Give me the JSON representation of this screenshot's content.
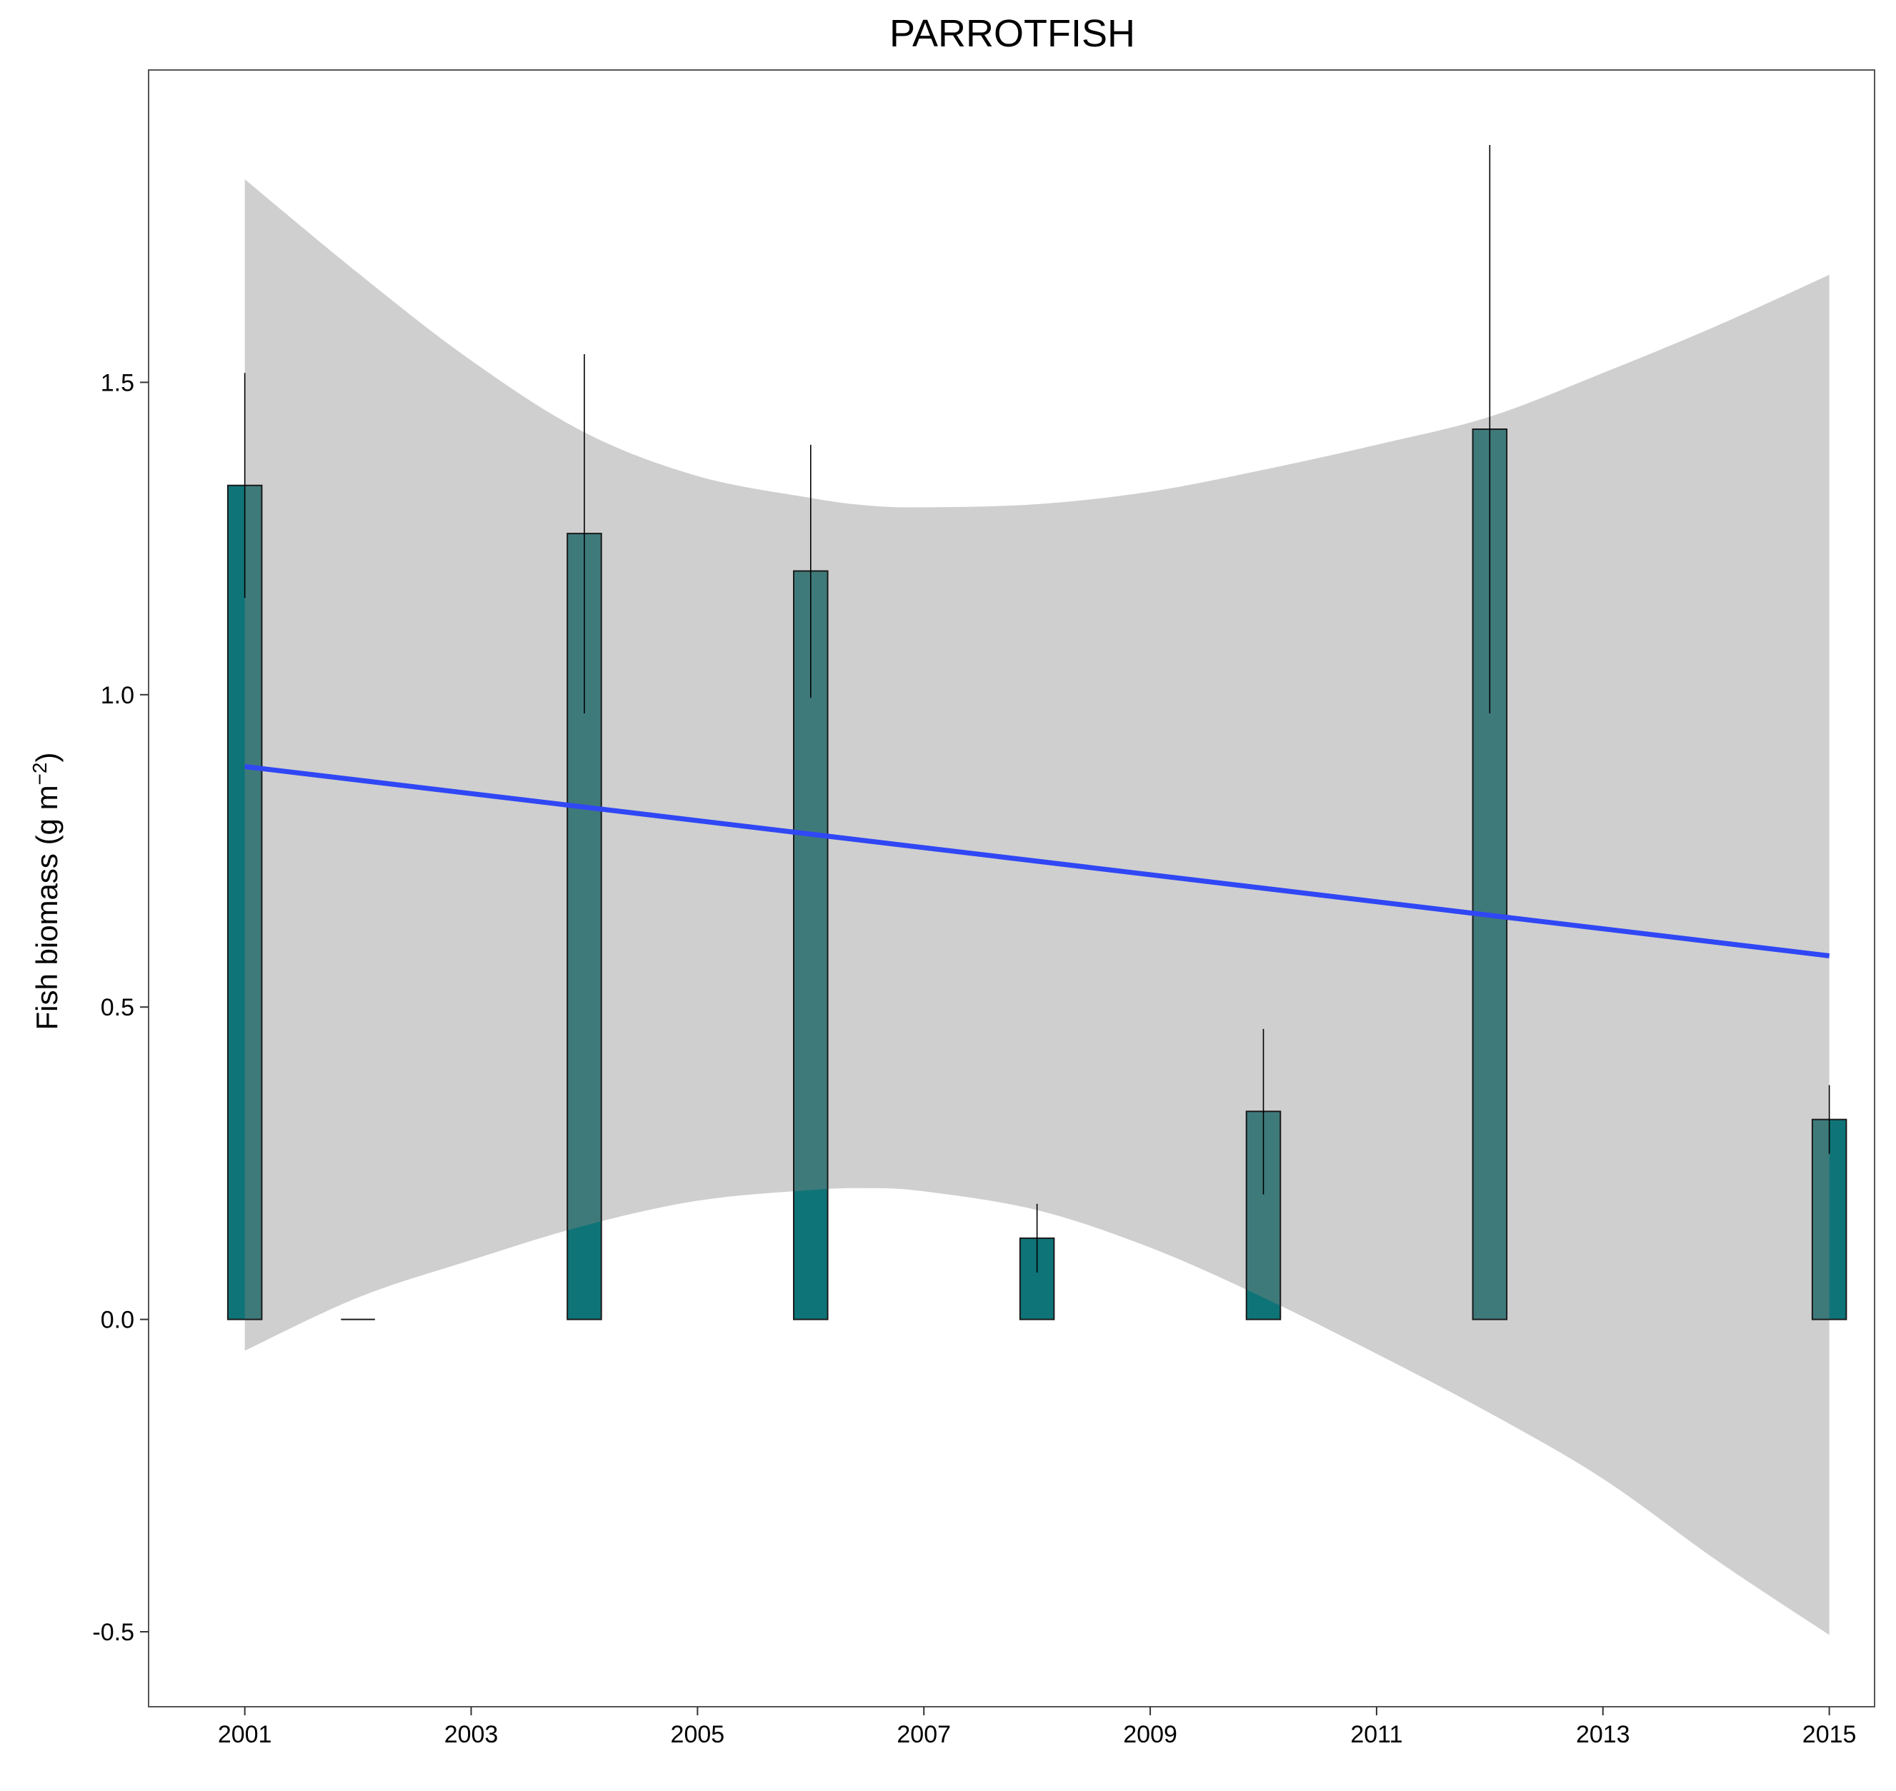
{
  "chart_data": {
    "type": "bar",
    "title": "PARROTFISH",
    "xlabel": "",
    "ylabel": "Fish biomass (g m",
    "ylabel_superscript": "−2",
    "ylabel_suffix": ")",
    "xlim": [
      2000.15,
      2015.4
    ],
    "ylim": [
      -0.62,
      2.0
    ],
    "x_ticks": [
      {
        "value": 2001,
        "label": "2001"
      },
      {
        "value": 2003,
        "label": "2003"
      },
      {
        "value": 2005,
        "label": "2005"
      },
      {
        "value": 2007,
        "label": "2007"
      },
      {
        "value": 2009,
        "label": "2009"
      },
      {
        "value": 2011,
        "label": "2011"
      },
      {
        "value": 2013,
        "label": "2013"
      },
      {
        "value": 2015,
        "label": "2015"
      }
    ],
    "y_ticks": [
      {
        "value": -0.5,
        "label": "-0.5"
      },
      {
        "value": 0.0,
        "label": "0.0"
      },
      {
        "value": 0.5,
        "label": "0.5"
      },
      {
        "value": 1.0,
        "label": "1.0"
      },
      {
        "value": 1.5,
        "label": "1.5"
      }
    ],
    "bar_half_width_years": 0.15,
    "bars": [
      {
        "year": 2001,
        "value": 1.335,
        "err_low": 1.155,
        "err_high": 1.515
      },
      {
        "year": 2002,
        "value": 0.0,
        "err_low": 0.0,
        "err_high": 0.0
      },
      {
        "year": 2004,
        "value": 1.258,
        "err_low": 0.97,
        "err_high": 1.545
      },
      {
        "year": 2006,
        "value": 1.198,
        "err_low": 0.995,
        "err_high": 1.4
      },
      {
        "year": 2008,
        "value": 0.13,
        "err_low": 0.075,
        "err_high": 0.185
      },
      {
        "year": 2010,
        "value": 0.333,
        "err_low": 0.2,
        "err_high": 0.465
      },
      {
        "year": 2012,
        "value": 1.425,
        "err_low": 0.97,
        "err_high": 1.88
      },
      {
        "year": 2015,
        "value": 0.32,
        "err_low": 0.265,
        "err_high": 0.375
      }
    ],
    "trend": {
      "x": [
        2001,
        2015
      ],
      "y": [
        0.885,
        0.582
      ]
    },
    "confidence_band": {
      "x": [
        2001,
        2002,
        2003,
        2004,
        2005,
        2006,
        2006.5,
        2007,
        2008,
        2009,
        2010,
        2011,
        2012,
        2013,
        2014,
        2015
      ],
      "upper": [
        1.825,
        1.675,
        1.535,
        1.42,
        1.35,
        1.315,
        1.303,
        1.3,
        1.305,
        1.325,
        1.36,
        1.4,
        1.445,
        1.515,
        1.59,
        1.672
      ],
      "lower": [
        -0.05,
        0.035,
        0.095,
        0.15,
        0.19,
        0.207,
        0.21,
        0.205,
        0.175,
        0.115,
        0.035,
        -0.055,
        -0.15,
        -0.255,
        -0.385,
        -0.505
      ]
    },
    "colors": {
      "bar_fill": "#0f7478",
      "bar_fill_over_band": "#3f7a7b",
      "bar_stroke": "#1a1a1a",
      "band": "#cfcfcf",
      "trend_line": "#3047f5",
      "error_bar": "#000000",
      "panel_border": "#555555"
    },
    "grid": false,
    "legend": "none"
  }
}
